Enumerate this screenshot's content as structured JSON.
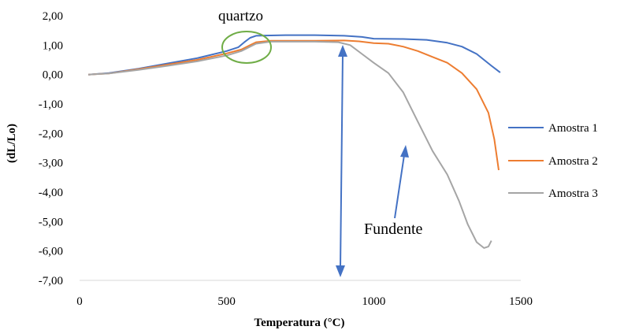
{
  "chart_data": {
    "type": "line",
    "xlabel": "Temperatura (°C)",
    "ylabel": "(dL/Lo)",
    "xlim": [
      0,
      1500
    ],
    "ylim": [
      -7,
      2
    ],
    "xticks": [
      "0",
      "500",
      "1000",
      "1500"
    ],
    "yticks": [
      "2,00",
      "1,00",
      "0,00",
      "-1,00",
      "-2,00",
      "-3,00",
      "-4,00",
      "-5,00",
      "-6,00",
      "-7,00"
    ],
    "grid": false,
    "legend_position": "right",
    "series": [
      {
        "name": "Amostra 1",
        "color": "#4472C4",
        "points": [
          [
            30,
            0.0
          ],
          [
            100,
            0.05
          ],
          [
            200,
            0.2
          ],
          [
            300,
            0.38
          ],
          [
            400,
            0.56
          ],
          [
            500,
            0.8
          ],
          [
            540,
            0.93
          ],
          [
            560,
            1.1
          ],
          [
            580,
            1.25
          ],
          [
            600,
            1.32
          ],
          [
            700,
            1.34
          ],
          [
            800,
            1.34
          ],
          [
            900,
            1.32
          ],
          [
            960,
            1.28
          ],
          [
            1000,
            1.22
          ],
          [
            1100,
            1.21
          ],
          [
            1180,
            1.18
          ],
          [
            1250,
            1.08
          ],
          [
            1300,
            0.95
          ],
          [
            1350,
            0.7
          ],
          [
            1400,
            0.3
          ],
          [
            1430,
            0.07
          ]
        ]
      },
      {
        "name": "Amostra 2",
        "color": "#ED7D31",
        "points": [
          [
            30,
            0.0
          ],
          [
            100,
            0.04
          ],
          [
            200,
            0.18
          ],
          [
            300,
            0.34
          ],
          [
            400,
            0.5
          ],
          [
            500,
            0.72
          ],
          [
            550,
            0.85
          ],
          [
            580,
            1.0
          ],
          [
            600,
            1.1
          ],
          [
            650,
            1.15
          ],
          [
            700,
            1.15
          ],
          [
            800,
            1.15
          ],
          [
            900,
            1.16
          ],
          [
            950,
            1.13
          ],
          [
            1000,
            1.07
          ],
          [
            1050,
            1.05
          ],
          [
            1100,
            0.95
          ],
          [
            1150,
            0.8
          ],
          [
            1200,
            0.6
          ],
          [
            1250,
            0.4
          ],
          [
            1300,
            0.05
          ],
          [
            1350,
            -0.5
          ],
          [
            1390,
            -1.3
          ],
          [
            1410,
            -2.2
          ],
          [
            1425,
            -3.25
          ]
        ]
      },
      {
        "name": "Amostra 3",
        "color": "#A5A5A5",
        "points": [
          [
            30,
            0.0
          ],
          [
            100,
            0.04
          ],
          [
            200,
            0.16
          ],
          [
            300,
            0.3
          ],
          [
            400,
            0.45
          ],
          [
            500,
            0.65
          ],
          [
            550,
            0.8
          ],
          [
            580,
            0.95
          ],
          [
            600,
            1.05
          ],
          [
            650,
            1.12
          ],
          [
            700,
            1.12
          ],
          [
            800,
            1.12
          ],
          [
            880,
            1.1
          ],
          [
            920,
            1.0
          ],
          [
            960,
            0.7
          ],
          [
            1000,
            0.4
          ],
          [
            1050,
            0.05
          ],
          [
            1100,
            -0.6
          ],
          [
            1150,
            -1.6
          ],
          [
            1200,
            -2.6
          ],
          [
            1250,
            -3.4
          ],
          [
            1290,
            -4.3
          ],
          [
            1320,
            -5.1
          ],
          [
            1350,
            -5.7
          ],
          [
            1375,
            -5.9
          ],
          [
            1390,
            -5.85
          ],
          [
            1400,
            -5.65
          ]
        ]
      }
    ],
    "annotations": {
      "quartzo_label": "quartzo",
      "fundente_label": "Fundente"
    }
  }
}
